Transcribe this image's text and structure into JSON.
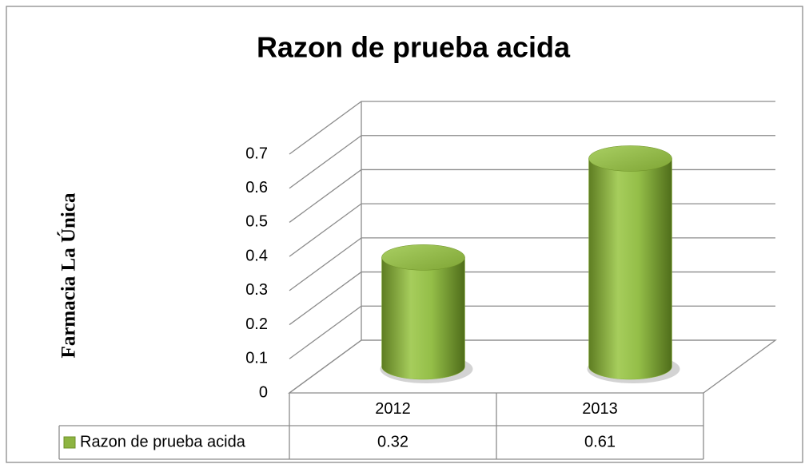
{
  "chart_data": {
    "type": "bar3d",
    "title": "Razon de prueba acida",
    "y_label": "Farmacia La Única",
    "categories": [
      "2012",
      "2013"
    ],
    "series": [
      {
        "name": "Razon de prueba acida",
        "color": "#8db441",
        "values": [
          0.32,
          0.61
        ]
      }
    ],
    "ylim": [
      0,
      0.7
    ],
    "yticks": [
      0,
      0.1,
      0.2,
      0.3,
      0.4,
      0.5,
      0.6,
      0.7
    ],
    "grid": true,
    "data_table": true
  }
}
